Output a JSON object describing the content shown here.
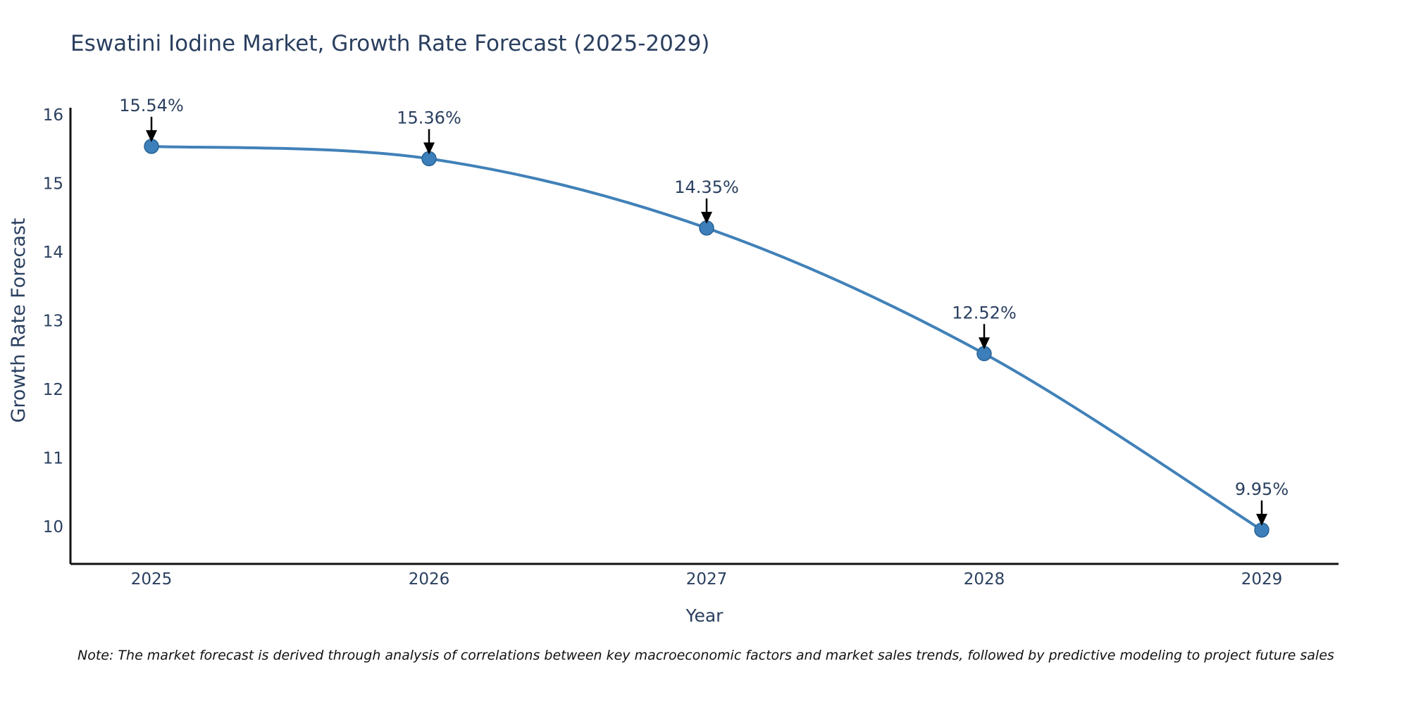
{
  "figure": {
    "note": "Note: The market forecast is derived through analysis of correlations between key macroeconomic factors and market sales trends, followed by predictive modeling to project future sales"
  },
  "chart_data": {
    "type": "line",
    "title": "Eswatini Iodine Market, Growth Rate Forecast (2025-2029)",
    "xlabel": "Year",
    "ylabel": "Growth Rate Forecast",
    "x": [
      2025,
      2026,
      2027,
      2028,
      2029
    ],
    "x_tick_labels": [
      "2025",
      "2026",
      "2027",
      "2028",
      "2029"
    ],
    "y_ticks": [
      16,
      15,
      14,
      13,
      12,
      11,
      10
    ],
    "ylim": [
      10,
      16
    ],
    "grid": false,
    "legend_position": "none",
    "line_style": "spline",
    "series": [
      {
        "name": "Growth Rate Forecast",
        "values": [
          15.54,
          15.36,
          14.35,
          12.52,
          9.95
        ],
        "point_labels": [
          "15.54%",
          "15.36%",
          "14.35%",
          "12.52%",
          "9.95%"
        ]
      }
    ],
    "colors": {
      "line": "#4181b8",
      "marker_fill": "#3c7fba",
      "marker_edge": "#2a6396",
      "axis": "#111111",
      "text": "#2a3f5f",
      "annotation_text": "#2a3f5f",
      "annotation_arrow": "#000000",
      "note_text": "#111111",
      "background": "#ffffff"
    }
  }
}
